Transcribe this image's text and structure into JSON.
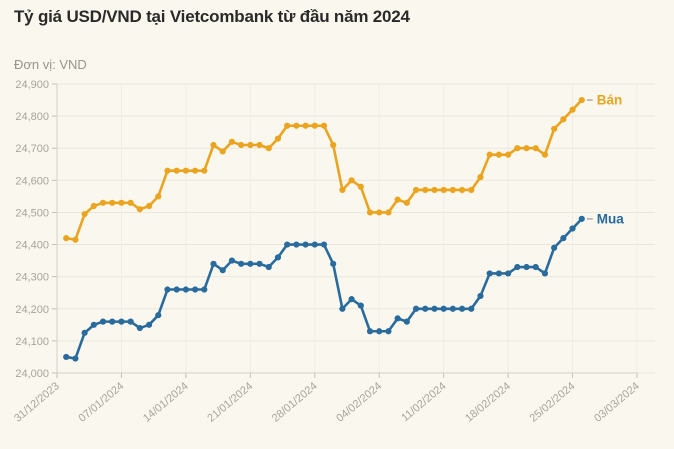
{
  "header": {
    "title": "Tỷ giá USD/VND tại Vietcombank từ đầu năm 2024",
    "unit_label": "Đơn vị: VND"
  },
  "colors": {
    "background": "#FAF7EF",
    "sell_line": "#EAA41F",
    "buy_line": "#2A6B9D",
    "grid": "#EBE7DE",
    "axis": "#D6D2C9",
    "tick": "#C4C0B8",
    "axis_label": "#A8A49C",
    "leader_dash": "#ABA79F"
  },
  "chart_data": {
    "type": "line",
    "title": "Tỷ giá USD/VND tại Vietcombank từ đầu năm 2024",
    "ylabel": "Đơn vị: VND",
    "ylim": [
      24000,
      24900
    ],
    "ytick_step": 100,
    "ytick_labels": [
      "24,000",
      "24,100",
      "24,200",
      "24,300",
      "24,400",
      "24,500",
      "24,600",
      "24,700",
      "24,800",
      "24,900"
    ],
    "grid": "horizontal-faint",
    "legend_position": "line-end",
    "xticks": [
      "31/12/2023",
      "07/01/2024",
      "14/01/2024",
      "21/01/2024",
      "28/01/2024",
      "04/02/2024",
      "11/02/2024",
      "18/02/2024",
      "25/02/2024",
      "03/03/2024"
    ],
    "x": [
      "01/01/2024",
      "02/01/2024",
      "03/01/2024",
      "04/01/2024",
      "05/01/2024",
      "06/01/2024",
      "07/01/2024",
      "08/01/2024",
      "09/01/2024",
      "10/01/2024",
      "11/01/2024",
      "12/01/2024",
      "13/01/2024",
      "14/01/2024",
      "15/01/2024",
      "16/01/2024",
      "17/01/2024",
      "18/01/2024",
      "19/01/2024",
      "20/01/2024",
      "21/01/2024",
      "22/01/2024",
      "23/01/2024",
      "24/01/2024",
      "25/01/2024",
      "26/01/2024",
      "27/01/2024",
      "28/01/2024",
      "29/01/2024",
      "30/01/2024",
      "31/01/2024",
      "01/02/2024",
      "02/02/2024",
      "03/02/2024",
      "04/02/2024",
      "05/02/2024",
      "06/02/2024",
      "07/02/2024",
      "08/02/2024",
      "09/02/2024",
      "10/02/2024",
      "11/02/2024",
      "12/02/2024",
      "13/02/2024",
      "14/02/2024",
      "15/02/2024",
      "16/02/2024",
      "17/02/2024",
      "18/02/2024",
      "19/02/2024",
      "20/02/2024",
      "21/02/2024",
      "22/02/2024",
      "23/02/2024",
      "24/02/2024",
      "25/02/2024",
      "26/02/2024"
    ],
    "series": [
      {
        "name": "Bán",
        "color": "#EAA41F",
        "values": [
          24420,
          24415,
          24495,
          24520,
          24530,
          24530,
          24530,
          24530,
          24510,
          24520,
          24550,
          24630,
          24630,
          24630,
          24630,
          24630,
          24710,
          24690,
          24720,
          24710,
          24710,
          24710,
          24700,
          24730,
          24770,
          24770,
          24770,
          24770,
          24770,
          24710,
          24570,
          24600,
          24580,
          24500,
          24500,
          24500,
          24540,
          24530,
          24570,
          24570,
          24570,
          24570,
          24570,
          24570,
          24570,
          24610,
          24680,
          24680,
          24680,
          24700,
          24700,
          24700,
          24680,
          24760,
          24790,
          24820,
          24850
        ]
      },
      {
        "name": "Mua",
        "color": "#2A6B9D",
        "values": [
          24050,
          24045,
          24125,
          24150,
          24160,
          24160,
          24160,
          24160,
          24140,
          24150,
          24180,
          24260,
          24260,
          24260,
          24260,
          24260,
          24340,
          24320,
          24350,
          24340,
          24340,
          24340,
          24330,
          24360,
          24400,
          24400,
          24400,
          24400,
          24400,
          24340,
          24200,
          24230,
          24210,
          24130,
          24130,
          24130,
          24170,
          24160,
          24200,
          24200,
          24200,
          24200,
          24200,
          24200,
          24200,
          24240,
          24310,
          24310,
          24310,
          24330,
          24330,
          24330,
          24310,
          24390,
          24420,
          24450,
          24480
        ]
      }
    ]
  }
}
